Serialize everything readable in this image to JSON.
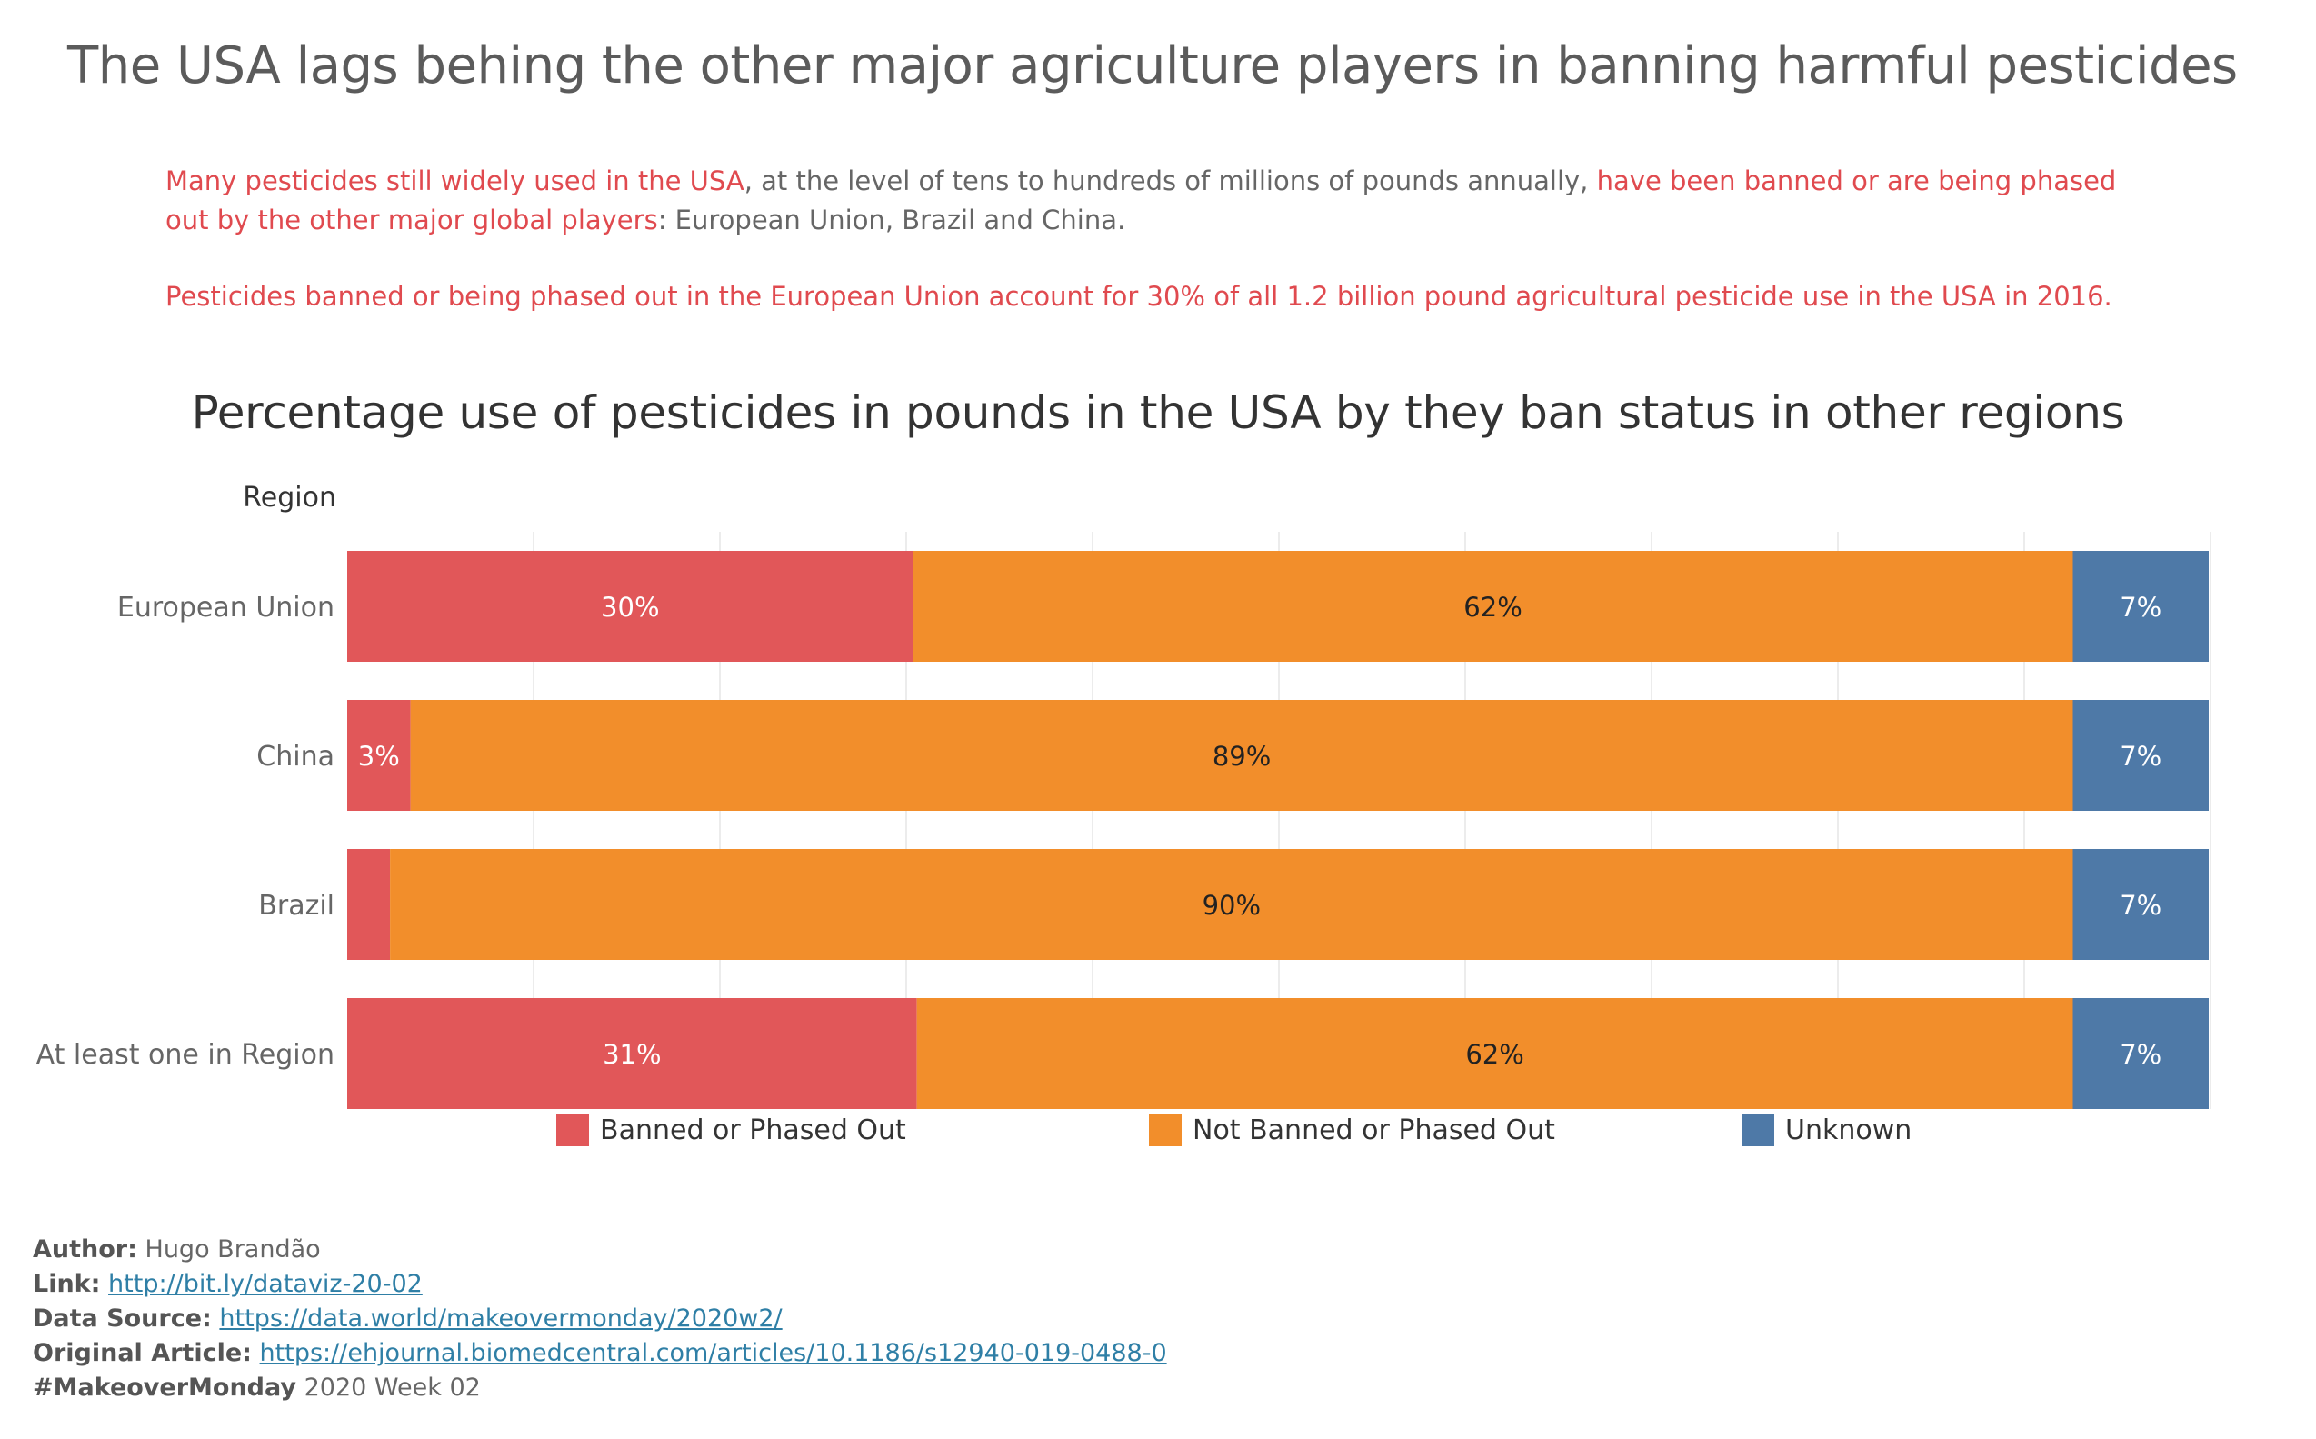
{
  "title": "The USA lags behing the other major agriculture players in banning harmful pesticides",
  "intro": {
    "p1_hl1": "Many pesticides still widely used in the USA",
    "p1_mid": ", at the level of tens to hundreds of millions of pounds annually, ",
    "p1_hl2": "have been banned or are being phased out by the other major global players",
    "p1_end": ": European Union, Brazil and China.",
    "p2": "Pesticides banned or being phased out in the European Union account for 30% of all 1.2 billion pound agricultural pesticide use in the USA in 2016."
  },
  "colors": {
    "banned": "#e15759",
    "not_banned": "#f28e2b",
    "unknown": "#4e79a7",
    "highlight": "#e04a4f",
    "link": "#2f7fa6"
  },
  "chart_data": {
    "type": "bar",
    "orientation": "horizontal",
    "stacked": "100%",
    "title": "Percentage use of pesticides in pounds in the USA by they ban status in other regions",
    "ylabel": "Region",
    "categories": [
      "European Union",
      "China",
      "Brazil",
      "At least one in Region"
    ],
    "series": [
      {
        "name": "Banned or Phased Out",
        "values": [
          30.4,
          3.4,
          2.3,
          30.6
        ],
        "labels": [
          "30%",
          "3%",
          "",
          "31%"
        ],
        "color": "#e15759"
      },
      {
        "name": "Not Banned or Phased Out",
        "values": [
          62.3,
          89.3,
          90.4,
          62.1
        ],
        "labels": [
          "62%",
          "89%",
          "90%",
          "62%"
        ],
        "color": "#f28e2b"
      },
      {
        "name": "Unknown",
        "values": [
          7.3,
          7.3,
          7.3,
          7.3
        ],
        "labels": [
          "7%",
          "7%",
          "7%",
          "7%"
        ],
        "color": "#4e79a7"
      }
    ],
    "xlim": [
      0,
      100
    ],
    "grid": true,
    "legend_position": "bottom"
  },
  "credits": {
    "author_key": "Author:",
    "author_val": "Hugo Brandão",
    "link_key": "Link:",
    "link_val": "http://bit.ly/dataviz-20-02",
    "source_key": "Data Source:",
    "source_val": "https://data.world/makeovermonday/2020w2/",
    "article_key": "Original Article:",
    "article_val": "https://ehjournal.biomedcentral.com/articles/10.1186/s12940-019-0488-0",
    "mm_key": "#MakeoverMonday",
    "mm_val": "2020 Week 02"
  }
}
